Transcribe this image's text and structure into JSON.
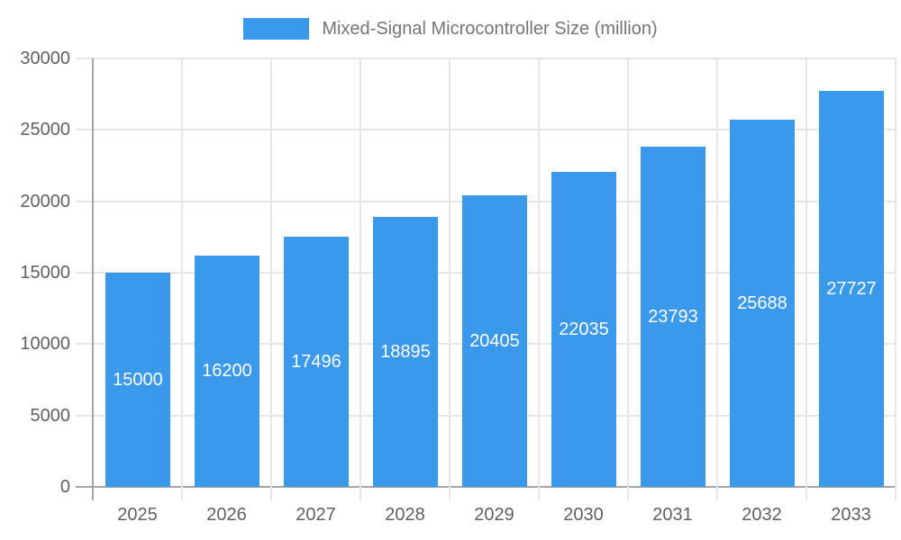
{
  "chart_data": {
    "type": "bar",
    "title": "",
    "legend": {
      "label": "Mixed-Signal Microcontroller Size (million)",
      "position": "top"
    },
    "categories": [
      "2025",
      "2026",
      "2027",
      "2028",
      "2029",
      "2030",
      "2031",
      "2032",
      "2033"
    ],
    "series": [
      {
        "name": "Mixed-Signal Microcontroller Size (million)",
        "values": [
          15000,
          16200,
          17496,
          18895,
          20405,
          22035,
          23793,
          25688,
          27727
        ]
      }
    ],
    "value_labels": [
      "15000",
      "16200",
      "17496",
      "18895",
      "20405",
      "22035",
      "23793",
      "25688",
      "27727"
    ],
    "value_label_position": "center-of-bar",
    "xlabel": "",
    "ylabel": "",
    "ylim": [
      0,
      30000
    ],
    "ytick_interval": 5000,
    "yticks": [
      0,
      5000,
      10000,
      15000,
      20000,
      25000,
      30000
    ],
    "ytick_labels": [
      "0",
      "5000",
      "10000",
      "15000",
      "20000",
      "25000",
      "30000"
    ],
    "grid": true,
    "legend_visible": true,
    "colors": {
      "bar": "#3B99EC",
      "bar_value_text": "#FFFFFF",
      "grid_line": "#E6E6E6",
      "axis_line": "#A6A6A6",
      "axis_text": "#616161",
      "legend_text": "#757575",
      "background": "#FFFFFF"
    }
  }
}
